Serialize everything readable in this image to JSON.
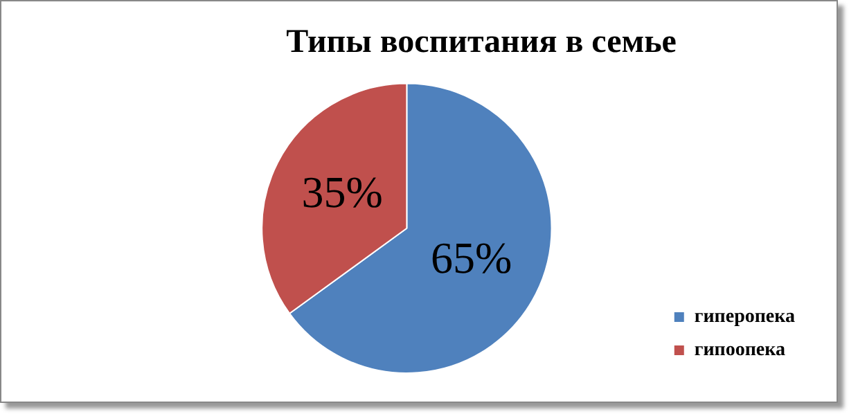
{
  "chart_data": {
    "type": "pie",
    "title": "Типы воспитания в семье",
    "categories": [
      "гиперопека",
      "гипоопека"
    ],
    "values": [
      65,
      35
    ],
    "colors": [
      "#4f81bd",
      "#c0504d"
    ],
    "value_labels": [
      "65%",
      "35%"
    ],
    "legend": "bottom right"
  }
}
